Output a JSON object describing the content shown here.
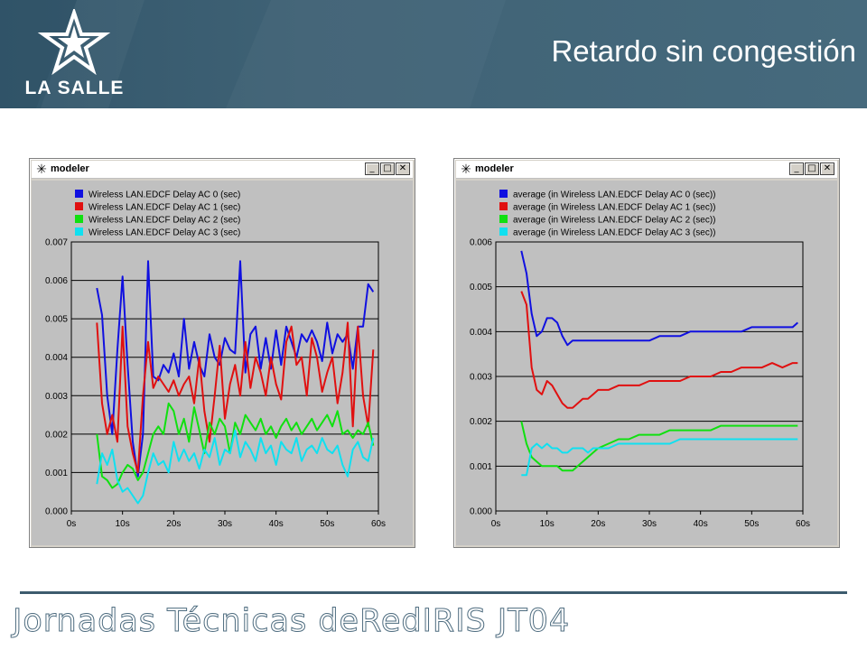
{
  "header": {
    "logo_text": "LA SALLE",
    "title": "Retardo sin congestión",
    "band_color": "#3d5f72"
  },
  "footer": {
    "text": "Jornadas Técnicas deRedIRIS JT04"
  },
  "windows": [
    {
      "title": "modeler",
      "icon": "star-icon",
      "buttons": [
        "minimize",
        "maximize",
        "close"
      ]
    },
    {
      "title": "modeler",
      "icon": "star-icon",
      "buttons": [
        "minimize",
        "maximize",
        "close"
      ]
    }
  ],
  "chart_data": [
    {
      "type": "line",
      "plot_bg": "#c0c0c0",
      "grid": true,
      "xlim": [
        0,
        60
      ],
      "ylim": [
        0,
        0.007
      ],
      "x_ticks": [
        "0s",
        "10s",
        "20s",
        "30s",
        "40s",
        "50s",
        "60s"
      ],
      "y_ticks": [
        "0.000",
        "0.001",
        "0.002",
        "0.003",
        "0.004",
        "0.005",
        "0.006",
        "0.007"
      ],
      "legend": "top-left",
      "series": [
        {
          "name": "Wireless LAN.EDCF Delay AC 0 (sec)",
          "color": "#1010e0",
          "x": [
            5,
            6,
            7,
            8,
            9,
            10,
            11,
            12,
            13,
            14,
            15,
            16,
            17,
            18,
            19,
            20,
            21,
            22,
            23,
            24,
            25,
            26,
            27,
            28,
            29,
            30,
            31,
            32,
            33,
            34,
            35,
            36,
            37,
            38,
            39,
            40,
            41,
            42,
            43,
            44,
            45,
            46,
            47,
            48,
            49,
            50,
            51,
            52,
            53,
            54,
            55,
            56,
            57,
            58,
            59
          ],
          "values": [
            0.0058,
            0.0051,
            0.003,
            0.002,
            0.0042,
            0.0061,
            0.0038,
            0.0018,
            0.0009,
            0.002,
            0.0065,
            0.0035,
            0.0034,
            0.0038,
            0.0036,
            0.0041,
            0.0035,
            0.005,
            0.0037,
            0.0044,
            0.0038,
            0.0035,
            0.0046,
            0.004,
            0.0038,
            0.0045,
            0.0042,
            0.0041,
            0.0065,
            0.0036,
            0.0046,
            0.0048,
            0.0037,
            0.0045,
            0.0037,
            0.0047,
            0.0038,
            0.0048,
            0.0044,
            0.004,
            0.0046,
            0.0044,
            0.0047,
            0.0044,
            0.0039,
            0.0049,
            0.0041,
            0.0046,
            0.0044,
            0.0046,
            0.0037,
            0.0048,
            0.0048,
            0.0059,
            0.0057
          ]
        },
        {
          "name": "Wireless LAN.EDCF Delay AC 1 (sec)",
          "color": "#e01010",
          "x": [
            5,
            6,
            7,
            8,
            9,
            10,
            11,
            12,
            13,
            14,
            15,
            16,
            17,
            18,
            19,
            20,
            21,
            22,
            23,
            24,
            25,
            26,
            27,
            28,
            29,
            30,
            31,
            32,
            33,
            34,
            35,
            36,
            37,
            38,
            39,
            40,
            41,
            42,
            43,
            44,
            45,
            46,
            47,
            48,
            49,
            50,
            51,
            52,
            53,
            54,
            55,
            56,
            57,
            58,
            59
          ],
          "values": [
            0.0049,
            0.0028,
            0.002,
            0.0025,
            0.0018,
            0.0048,
            0.0022,
            0.0015,
            0.001,
            0.003,
            0.0044,
            0.0032,
            0.0035,
            0.0033,
            0.0031,
            0.0034,
            0.003,
            0.0033,
            0.0035,
            0.0028,
            0.004,
            0.0026,
            0.0018,
            0.003,
            0.0043,
            0.0024,
            0.0033,
            0.0038,
            0.003,
            0.0044,
            0.0032,
            0.004,
            0.0036,
            0.003,
            0.004,
            0.0033,
            0.0029,
            0.0044,
            0.0048,
            0.0038,
            0.004,
            0.003,
            0.0045,
            0.004,
            0.0031,
            0.0036,
            0.004,
            0.0028,
            0.0036,
            0.0049,
            0.0022,
            0.0048,
            0.003,
            0.0022,
            0.0042
          ]
        },
        {
          "name": "Wireless LAN.EDCF Delay AC 2 (sec)",
          "color": "#10e010",
          "x": [
            5,
            6,
            7,
            8,
            9,
            10,
            11,
            12,
            13,
            14,
            15,
            16,
            17,
            18,
            19,
            20,
            21,
            22,
            23,
            24,
            25,
            26,
            27,
            28,
            29,
            30,
            31,
            32,
            33,
            34,
            35,
            36,
            37,
            38,
            39,
            40,
            41,
            42,
            43,
            44,
            45,
            46,
            47,
            48,
            49,
            50,
            51,
            52,
            53,
            54,
            55,
            56,
            57,
            58,
            59
          ],
          "values": [
            0.002,
            0.0009,
            0.0008,
            0.0006,
            0.0007,
            0.001,
            0.0012,
            0.0011,
            0.0008,
            0.001,
            0.0015,
            0.002,
            0.0022,
            0.002,
            0.0028,
            0.0026,
            0.002,
            0.0024,
            0.0018,
            0.0027,
            0.0021,
            0.0015,
            0.0023,
            0.002,
            0.0024,
            0.0022,
            0.0015,
            0.0023,
            0.002,
            0.0025,
            0.0023,
            0.0021,
            0.0024,
            0.002,
            0.0022,
            0.0019,
            0.0022,
            0.0024,
            0.0021,
            0.0023,
            0.002,
            0.0022,
            0.0024,
            0.0021,
            0.0023,
            0.0025,
            0.0022,
            0.0026,
            0.002,
            0.0021,
            0.0019,
            0.0021,
            0.002,
            0.0023,
            0.0017
          ]
        },
        {
          "name": "Wireless LAN.EDCF Delay AC 3 (sec)",
          "color": "#10e0f0",
          "x": [
            5,
            6,
            7,
            8,
            9,
            10,
            11,
            12,
            13,
            14,
            15,
            16,
            17,
            18,
            19,
            20,
            21,
            22,
            23,
            24,
            25,
            26,
            27,
            28,
            29,
            30,
            31,
            32,
            33,
            34,
            35,
            36,
            37,
            38,
            39,
            40,
            41,
            42,
            43,
            44,
            45,
            46,
            47,
            48,
            49,
            50,
            51,
            52,
            53,
            54,
            55,
            56,
            57,
            58,
            59
          ],
          "values": [
            0.0007,
            0.0015,
            0.0012,
            0.0016,
            0.0008,
            0.0005,
            0.0006,
            0.0004,
            0.0002,
            0.0004,
            0.001,
            0.0015,
            0.0012,
            0.0013,
            0.001,
            0.0018,
            0.0013,
            0.0016,
            0.0013,
            0.0015,
            0.0011,
            0.0016,
            0.0014,
            0.0019,
            0.0012,
            0.0016,
            0.0015,
            0.0021,
            0.0014,
            0.0018,
            0.0016,
            0.0013,
            0.0019,
            0.0015,
            0.0017,
            0.0012,
            0.0018,
            0.0016,
            0.0015,
            0.0019,
            0.0013,
            0.0016,
            0.0017,
            0.0015,
            0.0019,
            0.0016,
            0.0015,
            0.0017,
            0.0012,
            0.0009,
            0.0016,
            0.0018,
            0.0014,
            0.0013,
            0.0019
          ]
        }
      ]
    },
    {
      "type": "line",
      "plot_bg": "#c0c0c0",
      "grid": true,
      "xlim": [
        0,
        60
      ],
      "ylim": [
        0,
        0.006
      ],
      "x_ticks": [
        "0s",
        "10s",
        "20s",
        "30s",
        "40s",
        "50s",
        "60s"
      ],
      "y_ticks": [
        "0.000",
        "0.001",
        "0.002",
        "0.003",
        "0.004",
        "0.005",
        "0.006"
      ],
      "legend": "top-left",
      "series": [
        {
          "name": "average (in Wireless LAN.EDCF Delay AC 0 (sec))",
          "color": "#1010e0",
          "x": [
            5,
            6,
            7,
            8,
            9,
            10,
            11,
            12,
            13,
            14,
            15,
            16,
            17,
            18,
            19,
            20,
            22,
            24,
            26,
            28,
            30,
            32,
            34,
            36,
            38,
            40,
            42,
            44,
            46,
            48,
            50,
            52,
            54,
            56,
            58,
            59
          ],
          "values": [
            0.0058,
            0.0053,
            0.0044,
            0.0039,
            0.004,
            0.0043,
            0.0043,
            0.0042,
            0.0039,
            0.0037,
            0.0038,
            0.0038,
            0.0038,
            0.0038,
            0.0038,
            0.0038,
            0.0038,
            0.0038,
            0.0038,
            0.0038,
            0.0038,
            0.0039,
            0.0039,
            0.0039,
            0.004,
            0.004,
            0.004,
            0.004,
            0.004,
            0.004,
            0.0041,
            0.0041,
            0.0041,
            0.0041,
            0.0041,
            0.0042
          ]
        },
        {
          "name": "average (in Wireless LAN.EDCF Delay AC 1 (sec))",
          "color": "#e01010",
          "x": [
            5,
            6,
            7,
            8,
            9,
            10,
            11,
            12,
            13,
            14,
            15,
            16,
            17,
            18,
            19,
            20,
            22,
            24,
            26,
            28,
            30,
            32,
            34,
            36,
            38,
            40,
            42,
            44,
            46,
            48,
            50,
            52,
            54,
            56,
            58,
            59
          ],
          "values": [
            0.0049,
            0.0046,
            0.0032,
            0.0027,
            0.0026,
            0.0029,
            0.0028,
            0.0026,
            0.0024,
            0.0023,
            0.0023,
            0.0024,
            0.0025,
            0.0025,
            0.0026,
            0.0027,
            0.0027,
            0.0028,
            0.0028,
            0.0028,
            0.0029,
            0.0029,
            0.0029,
            0.0029,
            0.003,
            0.003,
            0.003,
            0.0031,
            0.0031,
            0.0032,
            0.0032,
            0.0032,
            0.0033,
            0.0032,
            0.0033,
            0.0033
          ]
        },
        {
          "name": "average (in Wireless LAN.EDCF Delay AC 2 (sec))",
          "color": "#10e010",
          "x": [
            5,
            6,
            7,
            8,
            9,
            10,
            11,
            12,
            13,
            14,
            15,
            16,
            17,
            18,
            19,
            20,
            22,
            24,
            26,
            28,
            30,
            32,
            34,
            36,
            38,
            40,
            42,
            44,
            46,
            48,
            50,
            52,
            54,
            56,
            58,
            59
          ],
          "values": [
            0.002,
            0.0015,
            0.0012,
            0.0011,
            0.001,
            0.001,
            0.001,
            0.001,
            0.0009,
            0.0009,
            0.0009,
            0.001,
            0.0011,
            0.0012,
            0.0013,
            0.0014,
            0.0015,
            0.0016,
            0.0016,
            0.0017,
            0.0017,
            0.0017,
            0.0018,
            0.0018,
            0.0018,
            0.0018,
            0.0018,
            0.0019,
            0.0019,
            0.0019,
            0.0019,
            0.0019,
            0.0019,
            0.0019,
            0.0019,
            0.0019
          ]
        },
        {
          "name": "average (in Wireless LAN.EDCF Delay AC 3 (sec))",
          "color": "#10e0f0",
          "x": [
            5,
            6,
            7,
            8,
            9,
            10,
            11,
            12,
            13,
            14,
            15,
            16,
            17,
            18,
            19,
            20,
            22,
            24,
            26,
            28,
            30,
            32,
            34,
            36,
            38,
            40,
            42,
            44,
            46,
            48,
            50,
            52,
            54,
            56,
            58,
            59
          ],
          "values": [
            0.0008,
            0.0008,
            0.0014,
            0.0015,
            0.0014,
            0.0015,
            0.0014,
            0.0014,
            0.0013,
            0.0013,
            0.0014,
            0.0014,
            0.0014,
            0.0013,
            0.0014,
            0.0014,
            0.0014,
            0.0015,
            0.0015,
            0.0015,
            0.0015,
            0.0015,
            0.0015,
            0.0016,
            0.0016,
            0.0016,
            0.0016,
            0.0016,
            0.0016,
            0.0016,
            0.0016,
            0.0016,
            0.0016,
            0.0016,
            0.0016,
            0.0016
          ]
        }
      ]
    }
  ]
}
